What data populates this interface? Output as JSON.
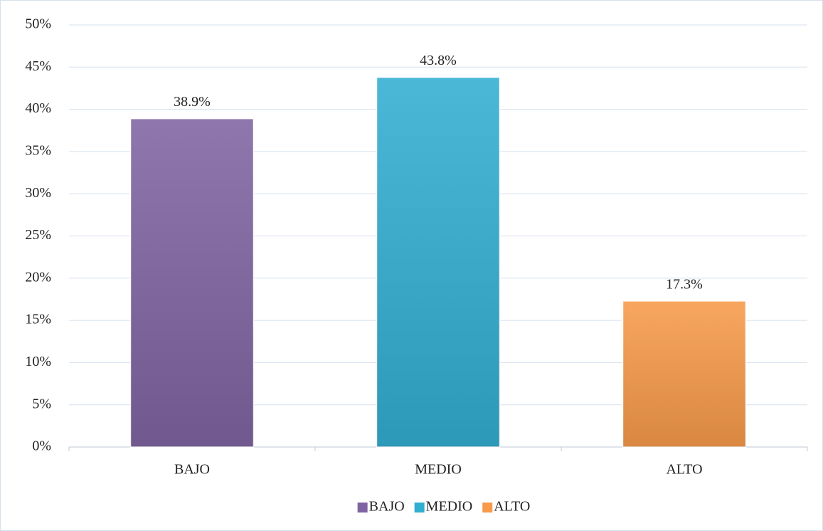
{
  "chart_data": {
    "type": "bar",
    "categories": [
      "BAJO",
      "MEDIO",
      "ALTO"
    ],
    "values": [
      38.9,
      43.8,
      17.3
    ],
    "value_labels": [
      "38.9%",
      "43.8%",
      "17.3%"
    ],
    "colors": [
      "#8064a2",
      "#31aed0",
      "#f79a4a"
    ],
    "ylim": [
      0,
      50
    ],
    "yticks": [
      {
        "value": 0,
        "label": "0%"
      },
      {
        "value": 5,
        "label": "5%"
      },
      {
        "value": 10,
        "label": "10%"
      },
      {
        "value": 15,
        "label": "15%"
      },
      {
        "value": 20,
        "label": "20%"
      },
      {
        "value": 25,
        "label": "25%"
      },
      {
        "value": 30,
        "label": "30%"
      },
      {
        "value": 35,
        "label": "35%"
      },
      {
        "value": 40,
        "label": "40%"
      },
      {
        "value": 45,
        "label": "45%"
      },
      {
        "value": 50,
        "label": "50%"
      }
    ],
    "grid": true,
    "legend": "bottom"
  }
}
